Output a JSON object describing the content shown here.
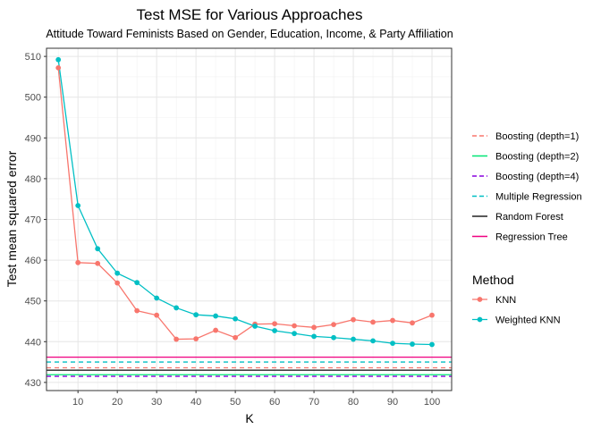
{
  "chart_data": {
    "type": "line",
    "title": "Test MSE for Various Approaches",
    "subtitle": "Attitude Toward Feminists Based on Gender, Education, Income, & Party Affiliation",
    "xlabel": "K",
    "ylabel": "Test mean squared error",
    "xlim": [
      2,
      105
    ],
    "ylim": [
      428,
      512
    ],
    "x_ticks": [
      10,
      20,
      30,
      40,
      50,
      60,
      70,
      80,
      90,
      100
    ],
    "y_ticks": [
      430,
      440,
      450,
      460,
      470,
      480,
      490,
      500,
      510
    ],
    "grid": true,
    "legend_position": "right",
    "x": [
      5,
      10,
      15,
      20,
      25,
      30,
      35,
      40,
      45,
      50,
      55,
      60,
      65,
      70,
      75,
      80,
      85,
      90,
      95,
      100
    ],
    "series": [
      {
        "name": "KNN",
        "color": "#F8766D",
        "values": [
          507.2,
          459.4,
          459.2,
          454.4,
          447.6,
          446.5,
          440.6,
          440.7,
          442.8,
          441.0,
          444.3,
          444.4,
          443.9,
          443.5,
          444.2,
          445.4,
          444.8,
          445.2,
          444.6,
          446.5
        ]
      },
      {
        "name": "Weighted KNN",
        "color": "#00BFC4",
        "values": [
          509.2,
          473.4,
          462.8,
          456.8,
          454.5,
          450.7,
          448.3,
          446.6,
          446.3,
          445.6,
          443.8,
          442.7,
          442.0,
          441.3,
          441.0,
          440.6,
          440.2,
          439.6,
          439.4,
          439.3
        ]
      }
    ],
    "reference_lines": [
      {
        "name": "Boosting (depth=1)",
        "value": 433.6,
        "color": "#F8766D",
        "dash": "dashed"
      },
      {
        "name": "Boosting (depth=2)",
        "value": 431.9,
        "color": "#00E676",
        "dash": "solid"
      },
      {
        "name": "Boosting (depth=4)",
        "value": 431.5,
        "color": "#8800DD",
        "dash": "dashed"
      },
      {
        "name": "Multiple Regression",
        "value": 435.0,
        "color": "#00BFC4",
        "dash": "dashed"
      },
      {
        "name": "Random Forest",
        "value": 433.0,
        "color": "#222222",
        "dash": "solid"
      },
      {
        "name": "Regression Tree",
        "value": 436.2,
        "color": "#F00080",
        "dash": "solid"
      }
    ],
    "legend": {
      "method_title": "Method"
    }
  }
}
